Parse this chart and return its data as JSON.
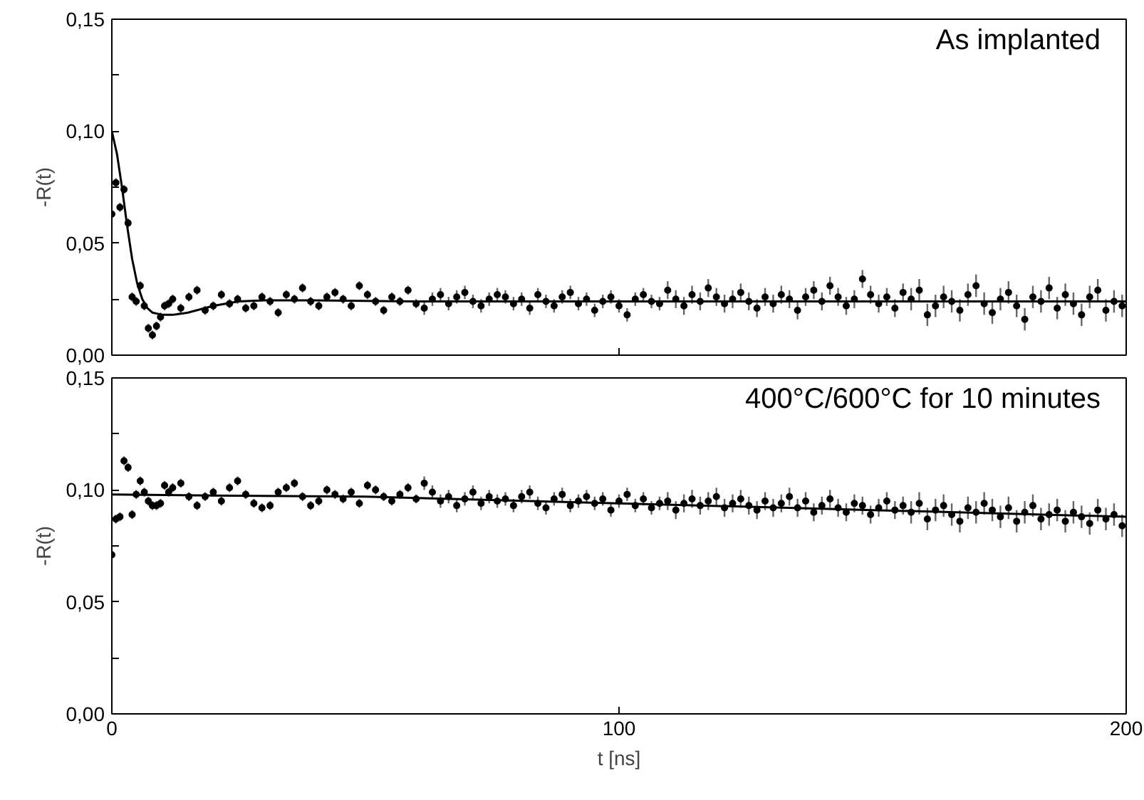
{
  "chart_data": [
    {
      "type": "scatter",
      "annotations": [
        "As implanted"
      ],
      "ylabel": "-R(t)",
      "tick_labels": "y",
      "grid": false,
      "xlim": [
        0,
        200
      ],
      "xticks": [
        0,
        100,
        200
      ],
      "ylim": [
        0,
        0.15
      ],
      "yticks": [
        {
          "value": 0,
          "label": "0,00"
        },
        {
          "value": 0.025,
          "label": null
        },
        {
          "value": 0.05,
          "label": "0,05"
        },
        {
          "value": 0.075,
          "label": null
        },
        {
          "value": 0.1,
          "label": "0,10"
        },
        {
          "value": 0.125,
          "label": null
        },
        {
          "value": 0.15,
          "label": "0,15"
        }
      ],
      "x": [
        0,
        0.8,
        1.6,
        2.4,
        3.2,
        4,
        4.8,
        5.6,
        6.4,
        7.2,
        8,
        8.8,
        9.6,
        10.4,
        11.2,
        12,
        13.6,
        15.2,
        16.8,
        18.4,
        20,
        21.6,
        23.2,
        24.8,
        26.4,
        28,
        29.6,
        31.2,
        32.8,
        34.4,
        36,
        37.6,
        39.2,
        40.8,
        42.4,
        44,
        45.6,
        47.2,
        48.8,
        50.4,
        52,
        53.6,
        55.2,
        56.8,
        58.4,
        60,
        61.6,
        63.2,
        64.8,
        66.4,
        68,
        69.6,
        71.2,
        72.8,
        74.4,
        76,
        77.6,
        79.2,
        80.8,
        82.4,
        84,
        85.6,
        87.2,
        88.8,
        90.4,
        92,
        93.6,
        95.2,
        96.8,
        98.4,
        100,
        101.6,
        103.2,
        104.8,
        106.4,
        108,
        109.6,
        111.2,
        112.8,
        114.4,
        116,
        117.6,
        119.2,
        120.8,
        122.4,
        124,
        125.6,
        127.2,
        128.8,
        130.4,
        132,
        133.6,
        135.2,
        136.8,
        138.4,
        140,
        141.6,
        143.2,
        144.8,
        146.4,
        148,
        149.6,
        151.2,
        152.8,
        154.4,
        156,
        157.6,
        159.2,
        160.8,
        162.4,
        164,
        165.6,
        167.2,
        168.8,
        170.4,
        172,
        173.6,
        175.2,
        176.8,
        178.4,
        180,
        181.6,
        183.2,
        184.8,
        186.4,
        188,
        189.6,
        191.2,
        192.8,
        194.4,
        196,
        197.6,
        199.2
      ],
      "series": [
        {
          "marker": "circle",
          "color": "#000000",
          "values": [
            0.063,
            0.077,
            0.066,
            0.074,
            0.059,
            0.026,
            0.024,
            0.031,
            0.022,
            0.012,
            0.009,
            0.013,
            0.017,
            0.022,
            0.023,
            0.025,
            0.021,
            0.026,
            0.029,
            0.02,
            0.022,
            0.027,
            0.023,
            0.025,
            0.021,
            0.022,
            0.026,
            0.024,
            0.019,
            0.027,
            0.025,
            0.03,
            0.024,
            0.022,
            0.026,
            0.028,
            0.025,
            0.022,
            0.031,
            0.027,
            0.024,
            0.02,
            0.026,
            0.024,
            0.029,
            0.023,
            0.021,
            0.025,
            0.027,
            0.023,
            0.026,
            0.028,
            0.024,
            0.022,
            0.025,
            0.027,
            0.026,
            0.023,
            0.025,
            0.021,
            0.027,
            0.024,
            0.022,
            0.026,
            0.028,
            0.023,
            0.025,
            0.02,
            0.024,
            0.026,
            0.022,
            0.018,
            0.025,
            0.027,
            0.024,
            0.023,
            0.029,
            0.025,
            0.022,
            0.027,
            0.024,
            0.03,
            0.026,
            0.023,
            0.025,
            0.028,
            0.024,
            0.021,
            0.026,
            0.023,
            0.027,
            0.025,
            0.02,
            0.026,
            0.029,
            0.024,
            0.031,
            0.026,
            0.022,
            0.025,
            0.034,
            0.027,
            0.023,
            0.026,
            0.021,
            0.028,
            0.025,
            0.029,
            0.018,
            0.022,
            0.026,
            0.024,
            0.02,
            0.027,
            0.031,
            0.023,
            0.019,
            0.025,
            0.028,
            0.022,
            0.016,
            0.026,
            0.024,
            0.03,
            0.021,
            0.027,
            0.023,
            0.018,
            0.026,
            0.029,
            0.02,
            0.024,
            0.022
          ],
          "errors": [
            0.002,
            0.002,
            0.002,
            0.002,
            0.002,
            0.002,
            0.002,
            0.002,
            0.002,
            0.002,
            0.002,
            0.002,
            0.002,
            0.002,
            0.002,
            0.002,
            0.002,
            0.002,
            0.002,
            0.002,
            0.002,
            0.002,
            0.002,
            0.002,
            0.002,
            0.002,
            0.002,
            0.002,
            0.002,
            0.002,
            0.002,
            0.002,
            0.002,
            0.002,
            0.002,
            0.002,
            0.002,
            0.002,
            0.002,
            0.002,
            0.002,
            0.002,
            0.002,
            0.002,
            0.002,
            0.002,
            0.003,
            0.003,
            0.003,
            0.003,
            0.003,
            0.003,
            0.003,
            0.003,
            0.003,
            0.003,
            0.003,
            0.003,
            0.003,
            0.003,
            0.003,
            0.003,
            0.003,
            0.003,
            0.003,
            0.003,
            0.003,
            0.003,
            0.003,
            0.003,
            0.003,
            0.003,
            0.003,
            0.003,
            0.003,
            0.003,
            0.004,
            0.004,
            0.004,
            0.004,
            0.004,
            0.004,
            0.004,
            0.004,
            0.004,
            0.004,
            0.004,
            0.004,
            0.004,
            0.004,
            0.004,
            0.004,
            0.004,
            0.004,
            0.004,
            0.004,
            0.004,
            0.004,
            0.004,
            0.004,
            0.004,
            0.004,
            0.004,
            0.004,
            0.004,
            0.004,
            0.005,
            0.005,
            0.005,
            0.005,
            0.005,
            0.005,
            0.005,
            0.005,
            0.005,
            0.005,
            0.005,
            0.005,
            0.005,
            0.005,
            0.005,
            0.005,
            0.005,
            0.005,
            0.005,
            0.005,
            0.005,
            0.005,
            0.005,
            0.005,
            0.005,
            0.005,
            0.005
          ]
        },
        {
          "type": "line",
          "marker": "none",
          "color": "#000000",
          "x": [
            0,
            1,
            2,
            3,
            4,
            5,
            6,
            7,
            8,
            10,
            12,
            15,
            20,
            25,
            30,
            40,
            60,
            100,
            150,
            200
          ],
          "values": [
            0.1,
            0.09,
            0.075,
            0.058,
            0.043,
            0.032,
            0.025,
            0.021,
            0.019,
            0.018,
            0.018,
            0.019,
            0.022,
            0.024,
            0.0245,
            0.0245,
            0.024,
            0.024,
            0.024,
            0.024
          ]
        }
      ]
    },
    {
      "type": "scatter",
      "annotations": [
        "400°C/600°C for 10 minutes"
      ],
      "xlabel": "t [ns]",
      "ylabel": "-R(t)",
      "grid": false,
      "xlim": [
        0,
        200
      ],
      "xticks": [
        0,
        100,
        200
      ],
      "ylim": [
        0,
        0.15
      ],
      "yticks": [
        {
          "value": 0,
          "label": "0,00"
        },
        {
          "value": 0.025,
          "label": null
        },
        {
          "value": 0.05,
          "label": "0,05"
        },
        {
          "value": 0.075,
          "label": null
        },
        {
          "value": 0.1,
          "label": "0,10"
        },
        {
          "value": 0.125,
          "label": null
        },
        {
          "value": 0.15,
          "label": "0,15"
        }
      ],
      "x": [
        0,
        0.8,
        1.6,
        2.4,
        3.2,
        4,
        4.8,
        5.6,
        6.4,
        7.2,
        8,
        8.8,
        9.6,
        10.4,
        11.2,
        12,
        13.6,
        15.2,
        16.8,
        18.4,
        20,
        21.6,
        23.2,
        24.8,
        26.4,
        28,
        29.6,
        31.2,
        32.8,
        34.4,
        36,
        37.6,
        39.2,
        40.8,
        42.4,
        44,
        45.6,
        47.2,
        48.8,
        50.4,
        52,
        53.6,
        55.2,
        56.8,
        58.4,
        60,
        61.6,
        63.2,
        64.8,
        66.4,
        68,
        69.6,
        71.2,
        72.8,
        74.4,
        76,
        77.6,
        79.2,
        80.8,
        82.4,
        84,
        85.6,
        87.2,
        88.8,
        90.4,
        92,
        93.6,
        95.2,
        96.8,
        98.4,
        100,
        101.6,
        103.2,
        104.8,
        106.4,
        108,
        109.6,
        111.2,
        112.8,
        114.4,
        116,
        117.6,
        119.2,
        120.8,
        122.4,
        124,
        125.6,
        127.2,
        128.8,
        130.4,
        132,
        133.6,
        135.2,
        136.8,
        138.4,
        140,
        141.6,
        143.2,
        144.8,
        146.4,
        148,
        149.6,
        151.2,
        152.8,
        154.4,
        156,
        157.6,
        159.2,
        160.8,
        162.4,
        164,
        165.6,
        167.2,
        168.8,
        170.4,
        172,
        173.6,
        175.2,
        176.8,
        178.4,
        180,
        181.6,
        183.2,
        184.8,
        186.4,
        188,
        189.6,
        191.2,
        192.8,
        194.4,
        196,
        197.6,
        199.2
      ],
      "series": [
        {
          "marker": "circle",
          "color": "#000000",
          "values": [
            0.071,
            0.087,
            0.088,
            0.113,
            0.11,
            0.089,
            0.098,
            0.104,
            0.099,
            0.095,
            0.093,
            0.093,
            0.094,
            0.102,
            0.099,
            0.101,
            0.103,
            0.097,
            0.093,
            0.097,
            0.099,
            0.095,
            0.101,
            0.104,
            0.098,
            0.094,
            0.092,
            0.093,
            0.099,
            0.101,
            0.103,
            0.097,
            0.093,
            0.095,
            0.1,
            0.098,
            0.096,
            0.099,
            0.094,
            0.102,
            0.1,
            0.097,
            0.095,
            0.098,
            0.101,
            0.096,
            0.103,
            0.099,
            0.095,
            0.097,
            0.093,
            0.096,
            0.099,
            0.094,
            0.097,
            0.095,
            0.096,
            0.093,
            0.097,
            0.099,
            0.094,
            0.092,
            0.096,
            0.098,
            0.093,
            0.095,
            0.097,
            0.094,
            0.096,
            0.091,
            0.095,
            0.098,
            0.093,
            0.096,
            0.092,
            0.094,
            0.095,
            0.091,
            0.094,
            0.096,
            0.093,
            0.095,
            0.097,
            0.092,
            0.094,
            0.096,
            0.093,
            0.091,
            0.095,
            0.092,
            0.094,
            0.097,
            0.092,
            0.095,
            0.09,
            0.093,
            0.096,
            0.092,
            0.09,
            0.094,
            0.093,
            0.089,
            0.092,
            0.095,
            0.091,
            0.093,
            0.09,
            0.094,
            0.087,
            0.091,
            0.093,
            0.089,
            0.086,
            0.092,
            0.09,
            0.094,
            0.091,
            0.088,
            0.092,
            0.086,
            0.09,
            0.093,
            0.087,
            0.089,
            0.091,
            0.086,
            0.09,
            0.088,
            0.085,
            0.091,
            0.087,
            0.089,
            0.084
          ],
          "errors": [
            0.002,
            0.002,
            0.002,
            0.002,
            0.002,
            0.002,
            0.002,
            0.002,
            0.002,
            0.002,
            0.002,
            0.002,
            0.002,
            0.002,
            0.002,
            0.002,
            0.002,
            0.002,
            0.002,
            0.002,
            0.002,
            0.002,
            0.002,
            0.002,
            0.002,
            0.002,
            0.002,
            0.002,
            0.002,
            0.002,
            0.002,
            0.002,
            0.002,
            0.002,
            0.002,
            0.002,
            0.002,
            0.002,
            0.002,
            0.002,
            0.002,
            0.002,
            0.002,
            0.002,
            0.002,
            0.002,
            0.003,
            0.003,
            0.003,
            0.003,
            0.003,
            0.003,
            0.003,
            0.003,
            0.003,
            0.003,
            0.003,
            0.003,
            0.003,
            0.003,
            0.003,
            0.003,
            0.003,
            0.003,
            0.003,
            0.003,
            0.003,
            0.003,
            0.003,
            0.003,
            0.003,
            0.003,
            0.003,
            0.003,
            0.003,
            0.003,
            0.004,
            0.004,
            0.004,
            0.004,
            0.004,
            0.004,
            0.004,
            0.004,
            0.004,
            0.004,
            0.004,
            0.004,
            0.004,
            0.004,
            0.004,
            0.004,
            0.004,
            0.004,
            0.004,
            0.004,
            0.004,
            0.004,
            0.004,
            0.004,
            0.004,
            0.004,
            0.004,
            0.004,
            0.004,
            0.004,
            0.005,
            0.005,
            0.005,
            0.005,
            0.005,
            0.005,
            0.005,
            0.005,
            0.005,
            0.005,
            0.005,
            0.005,
            0.005,
            0.005,
            0.005,
            0.005,
            0.005,
            0.005,
            0.005,
            0.005,
            0.005,
            0.005,
            0.005,
            0.005,
            0.005,
            0.005,
            0.005
          ]
        },
        {
          "type": "line",
          "marker": "none",
          "color": "#000000",
          "x": [
            0,
            20,
            50,
            100,
            150,
            200
          ],
          "values": [
            0.098,
            0.0975,
            0.097,
            0.094,
            0.091,
            0.088
          ]
        }
      ]
    }
  ]
}
